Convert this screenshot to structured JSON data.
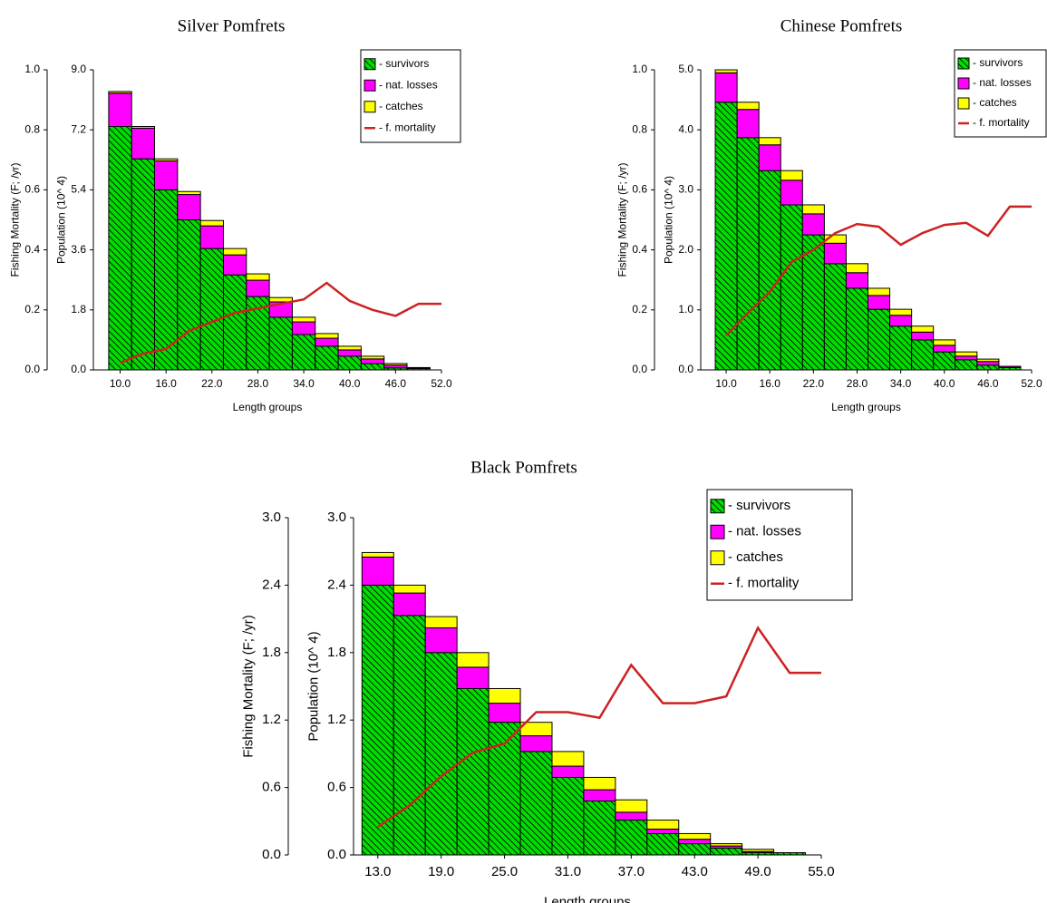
{
  "chart_data": [
    {
      "type": "bar",
      "stacked": true,
      "title": "Silver Pomfrets",
      "xlabel": "Length groups",
      "ylabel": "Population (10^ 4)",
      "y2label": "Fishing Mortality (F; /yr)",
      "x": [
        10,
        13,
        16,
        19,
        22,
        25,
        28,
        31,
        34,
        37,
        40,
        43,
        46,
        49
      ],
      "series": [
        {
          "name": "- survivors",
          "color": "#00dd00",
          "hatch": true,
          "values": [
            7.3,
            6.33,
            5.4,
            4.5,
            3.64,
            2.85,
            2.2,
            1.58,
            1.06,
            0.71,
            0.41,
            0.19,
            0.06,
            0.04
          ]
        },
        {
          "name": "- nat. losses",
          "color": "#ff00ff",
          "values": [
            1.0,
            0.92,
            0.87,
            0.76,
            0.68,
            0.6,
            0.49,
            0.46,
            0.38,
            0.24,
            0.19,
            0.14,
            0.08,
            0.02
          ]
        },
        {
          "name": "- catches",
          "color": "#ffff00",
          "values": [
            0.05,
            0.05,
            0.06,
            0.09,
            0.16,
            0.19,
            0.19,
            0.13,
            0.14,
            0.14,
            0.11,
            0.08,
            0.05,
            0.01
          ]
        },
        {
          "name": "- f. mortality",
          "type": "line",
          "color": "#cc2222",
          "axis": "y2",
          "x": [
            10,
            13,
            16,
            19,
            22,
            25,
            28,
            31,
            34,
            37,
            40,
            43,
            46,
            49,
            52
          ],
          "values": [
            0.024,
            0.054,
            0.07,
            0.13,
            0.16,
            0.19,
            0.205,
            0.22,
            0.235,
            0.29,
            0.23,
            0.2,
            0.18,
            0.22,
            0.22
          ]
        }
      ],
      "xlim": [
        6.5,
        52
      ],
      "xticks": [
        {
          "value": 10,
          "label": "10.0"
        },
        {
          "value": 16,
          "label": "16.0"
        },
        {
          "value": 22,
          "label": "22.0"
        },
        {
          "value": 28,
          "label": "28.0"
        },
        {
          "value": 34,
          "label": "34.0"
        },
        {
          "value": 40,
          "label": "40.0"
        },
        {
          "value": 46,
          "label": "46.0"
        },
        {
          "value": 52,
          "label": "52.0"
        }
      ],
      "ylim": [
        0,
        9
      ],
      "yticks": [
        {
          "value": 0,
          "label": "0.0"
        },
        {
          "value": 1.8,
          "label": "1.8"
        },
        {
          "value": 3.6,
          "label": "3.6"
        },
        {
          "value": 5.4,
          "label": "5.4"
        },
        {
          "value": 7.2,
          "label": "7.2"
        },
        {
          "value": 9,
          "label": "9.0"
        }
      ],
      "y2lim": [
        0,
        1
      ],
      "y2ticks": [
        {
          "value": 0,
          "label": "0.0"
        },
        {
          "value": 0.2,
          "label": "0.2"
        },
        {
          "value": 0.4,
          "label": "0.4"
        },
        {
          "value": 0.6,
          "label": "0.6"
        },
        {
          "value": 0.8,
          "label": "0.8"
        },
        {
          "value": 1,
          "label": "1.0"
        }
      ]
    },
    {
      "type": "bar",
      "stacked": true,
      "title": "Chinese Pomfrets",
      "xlabel": "Length groups",
      "ylabel": "Population (10^ 4)",
      "y2label": "Fishing Mortality (F; /yr)",
      "x": [
        10,
        13,
        16,
        19,
        22,
        25,
        28,
        31,
        34,
        37,
        40,
        43,
        46,
        49
      ],
      "series": [
        {
          "name": "- survivors",
          "color": "#00dd00",
          "hatch": true,
          "values": [
            4.46,
            3.87,
            3.32,
            2.75,
            2.25,
            1.77,
            1.36,
            1.01,
            0.73,
            0.5,
            0.3,
            0.17,
            0.08,
            0.04
          ]
        },
        {
          "name": "- nat. losses",
          "color": "#ff00ff",
          "values": [
            0.49,
            0.47,
            0.43,
            0.41,
            0.35,
            0.34,
            0.26,
            0.23,
            0.18,
            0.13,
            0.11,
            0.06,
            0.06,
            0.02
          ]
        },
        {
          "name": "- catches",
          "color": "#ffff00",
          "values": [
            0.05,
            0.12,
            0.12,
            0.16,
            0.15,
            0.14,
            0.15,
            0.12,
            0.1,
            0.1,
            0.09,
            0.07,
            0.04,
            0
          ]
        },
        {
          "name": "- f. mortality",
          "type": "line",
          "color": "#cc2222",
          "axis": "y2",
          "x": [
            10,
            13,
            16,
            19,
            22,
            25,
            28,
            31,
            34,
            37,
            40,
            43,
            46,
            49,
            52
          ],
          "values": [
            0.115,
            0.19,
            0.26,
            0.36,
            0.4,
            0.456,
            0.486,
            0.477,
            0.417,
            0.456,
            0.483,
            0.49,
            0.447,
            0.544,
            0.544
          ]
        }
      ],
      "xlim": [
        6.5,
        52
      ],
      "xticks": [
        {
          "value": 10,
          "label": "10.0"
        },
        {
          "value": 16,
          "label": "16.0"
        },
        {
          "value": 22,
          "label": "22.0"
        },
        {
          "value": 28,
          "label": "28.0"
        },
        {
          "value": 34,
          "label": "34.0"
        },
        {
          "value": 40,
          "label": "40.0"
        },
        {
          "value": 46,
          "label": "46.0"
        },
        {
          "value": 52,
          "label": "52.0"
        }
      ],
      "ylim": [
        0,
        5
      ],
      "yticks": [
        {
          "value": 0,
          "label": "0.0"
        },
        {
          "value": 1,
          "label": "1.0"
        },
        {
          "value": 2,
          "label": "2.0"
        },
        {
          "value": 3,
          "label": "3.0"
        },
        {
          "value": 4,
          "label": "4.0"
        },
        {
          "value": 5,
          "label": "5.0"
        }
      ],
      "y2lim": [
        0,
        1
      ],
      "y2ticks": [
        {
          "value": 0,
          "label": "0.0"
        },
        {
          "value": 0.2,
          "label": "0.2"
        },
        {
          "value": 0.4,
          "label": "0.4"
        },
        {
          "value": 0.6,
          "label": "0.6"
        },
        {
          "value": 0.8,
          "label": "0.8"
        },
        {
          "value": 1,
          "label": "1.0"
        }
      ]
    },
    {
      "type": "bar",
      "stacked": true,
      "title": "Black Pomfrets",
      "xlabel": "Length groups",
      "ylabel": "Population (10^ 4)",
      "y2label": "Fishing Mortality (F; /yr)",
      "x": [
        13,
        16,
        19,
        22,
        25,
        28,
        31,
        34,
        37,
        40,
        43,
        46,
        49,
        52
      ],
      "series": [
        {
          "name": "- survivors",
          "color": "#00dd00",
          "hatch": true,
          "values": [
            2.4,
            2.13,
            1.8,
            1.48,
            1.18,
            0.92,
            0.69,
            0.48,
            0.31,
            0.19,
            0.1,
            0.06,
            0.02,
            0.02
          ]
        },
        {
          "name": "- nat. losses",
          "color": "#ff00ff",
          "values": [
            0.25,
            0.2,
            0.22,
            0.19,
            0.17,
            0.14,
            0.1,
            0.1,
            0.07,
            0.04,
            0.04,
            0.02,
            0.01,
            0
          ]
        },
        {
          "name": "- catches",
          "color": "#ffff00",
          "values": [
            0.04,
            0.07,
            0.1,
            0.13,
            0.13,
            0.12,
            0.13,
            0.11,
            0.11,
            0.08,
            0.05,
            0.02,
            0.02,
            0
          ]
        },
        {
          "name": "- f. mortality",
          "type": "line",
          "color": "#cc2222",
          "axis": "y2",
          "x": [
            13,
            16,
            19,
            22,
            25,
            28,
            31,
            34,
            37,
            40,
            43,
            46,
            49,
            52,
            55
          ],
          "values": [
            0.25,
            0.44,
            0.7,
            0.91,
            0.99,
            1.27,
            1.27,
            1.22,
            1.69,
            1.35,
            1.35,
            1.41,
            2.02,
            1.62,
            1.62
          ]
        }
      ],
      "xlim": [
        10.7,
        55
      ],
      "xticks": [
        {
          "value": 13,
          "label": "13.0"
        },
        {
          "value": 19,
          "label": "19.0"
        },
        {
          "value": 25,
          "label": "25.0"
        },
        {
          "value": 31,
          "label": "31.0"
        },
        {
          "value": 37,
          "label": "37.0"
        },
        {
          "value": 43,
          "label": "43.0"
        },
        {
          "value": 49,
          "label": "49.0"
        },
        {
          "value": 55,
          "label": "55.0"
        }
      ],
      "ylim": [
        0,
        3
      ],
      "yticks": [
        {
          "value": 0,
          "label": "0.0"
        },
        {
          "value": 0.6,
          "label": "0.6"
        },
        {
          "value": 1.2,
          "label": "1.2"
        },
        {
          "value": 1.8,
          "label": "1.8"
        },
        {
          "value": 2.4,
          "label": "2.4"
        },
        {
          "value": 3,
          "label": "3.0"
        }
      ],
      "y2lim": [
        0,
        3
      ],
      "y2ticks": [
        {
          "value": 0,
          "label": "0.0"
        },
        {
          "value": 0.6,
          "label": "0.6"
        },
        {
          "value": 1.2,
          "label": "1.2"
        },
        {
          "value": 1.8,
          "label": "1.8"
        },
        {
          "value": 2.4,
          "label": "2.4"
        },
        {
          "value": 3,
          "label": "3.0"
        }
      ]
    }
  ]
}
